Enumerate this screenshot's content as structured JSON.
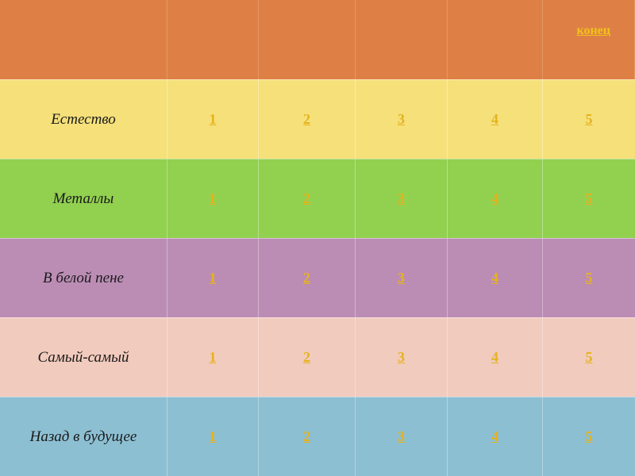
{
  "header": {
    "end_link": "конец"
  },
  "board": {
    "rows": [
      {
        "category": "Естество",
        "points": [
          "1",
          "2",
          "3",
          "4",
          "5"
        ]
      },
      {
        "category": "Металлы",
        "points": [
          "1",
          "2",
          "3",
          "4",
          "5"
        ]
      },
      {
        "category": "В белой пене",
        "points": [
          "1",
          "2",
          "3",
          "4",
          "5"
        ]
      },
      {
        "category": "Самый-самый",
        "points": [
          "1",
          "2",
          "3",
          "4",
          "5"
        ]
      },
      {
        "category": "Назад в будущее",
        "points": [
          "1",
          "2",
          "3",
          "4",
          "5"
        ]
      }
    ]
  },
  "colors": {
    "header": "#de8045",
    "row_1": "#f5e07a",
    "row_2": "#92d050",
    "row_3": "#bb8db5",
    "row_4": "#f1cbbd",
    "row_5": "#8dbfd2",
    "link": "#e6b21c"
  }
}
